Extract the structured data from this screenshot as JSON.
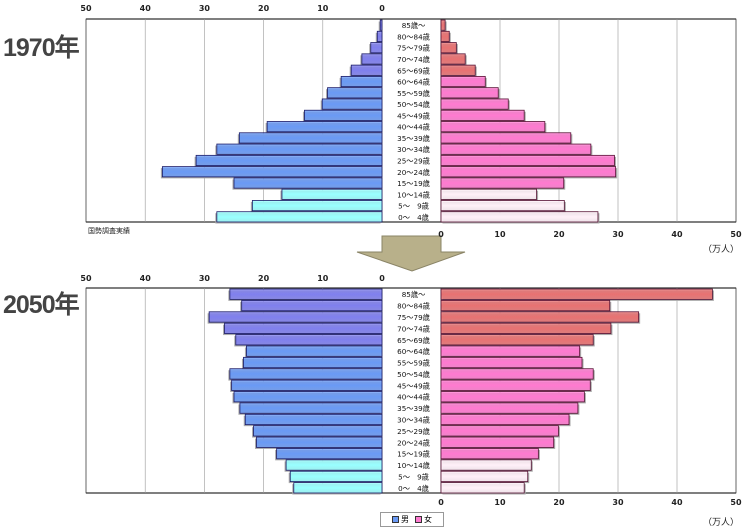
{
  "unit_label": "（万人）",
  "source_note": "国勢調査実績",
  "legend": {
    "male": "男",
    "female": "女"
  },
  "colors": {
    "male_old": "#8080ee",
    "male_work": "#6a9af5",
    "male_young": "#99ffff",
    "female_old": "#e87272",
    "female_work": "#ff7ad0",
    "female_young": "#fff0f8"
  },
  "chart_data": [
    {
      "type": "bar",
      "title": "1970年",
      "xlabel": "（万人）",
      "xlim": [
        0,
        50
      ],
      "ticks": [
        0,
        10,
        20,
        30,
        40,
        50
      ],
      "grid": true,
      "categories": [
        "85歳～",
        "80～84歳",
        "75～79歳",
        "70～74歳",
        "65～69歳",
        "60～64歳",
        "55～59歳",
        "50～54歳",
        "45～49歳",
        "40～44歳",
        "35～39歳",
        "30～34歳",
        "25～29歳",
        "20～24歳",
        "15～19歳",
        "10～14歳",
        "5～　9歳",
        "0～　4歳"
      ],
      "series": [
        {
          "name": "男",
          "values": [
            0.3,
            0.8,
            1.9,
            3.4,
            5.2,
            6.9,
            9.2,
            10.1,
            13.1,
            19.4,
            24.1,
            27.9,
            31.4,
            37.1,
            25.0,
            16.9,
            21.9,
            27.9
          ]
        },
        {
          "name": "女",
          "values": [
            0.7,
            1.4,
            2.6,
            4.1,
            5.8,
            7.5,
            9.7,
            11.4,
            14.1,
            17.6,
            22.0,
            25.4,
            29.4,
            29.6,
            20.8,
            16.2,
            20.9,
            26.6
          ]
        }
      ]
    },
    {
      "type": "bar",
      "title": "2050年",
      "xlabel": "（万人）",
      "xlim": [
        0,
        50
      ],
      "ticks": [
        0,
        10,
        20,
        30,
        40,
        50
      ],
      "grid": true,
      "categories": [
        "85歳～",
        "80～84歳",
        "75～79歳",
        "70～74歳",
        "65～69歳",
        "60～64歳",
        "55～59歳",
        "50～54歳",
        "45～49歳",
        "40～44歳",
        "35～39歳",
        "30～34歳",
        "25～29歳",
        "20～24歳",
        "15～19歳",
        "10～14歳",
        "5～　9歳",
        "0～　4歳"
      ],
      "series": [
        {
          "name": "男",
          "values": [
            25.7,
            23.7,
            29.2,
            26.6,
            24.7,
            22.9,
            23.4,
            25.7,
            25.4,
            25.0,
            24.0,
            23.1,
            21.7,
            21.2,
            17.8,
            16.2,
            15.5,
            14.9
          ]
        },
        {
          "name": "女",
          "values": [
            46.0,
            28.6,
            33.5,
            28.8,
            25.8,
            23.5,
            23.9,
            25.8,
            25.3,
            24.3,
            23.2,
            21.7,
            19.9,
            19.1,
            16.5,
            15.3,
            14.7,
            14.1
          ]
        }
      ]
    }
  ]
}
